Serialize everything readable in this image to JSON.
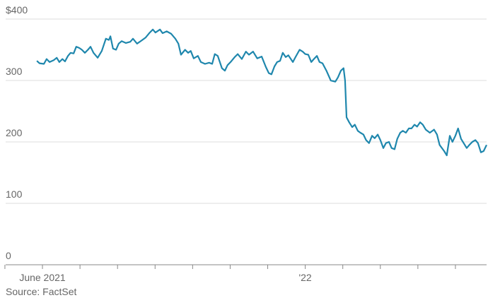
{
  "chart_data": {
    "type": "line",
    "source": "Source: FactSet",
    "x": [
      -0.15,
      -0.08,
      0.04,
      0.11,
      0.19,
      0.3,
      0.38,
      0.45,
      0.53,
      0.6,
      0.68,
      0.75,
      0.83,
      0.9,
      0.98,
      1.05,
      1.13,
      1.21,
      1.28,
      1.36,
      1.47,
      1.58,
      1.69,
      1.77,
      1.81,
      1.88,
      1.96,
      2.03,
      2.11,
      2.22,
      2.34,
      2.41,
      2.52,
      2.64,
      2.75,
      2.86,
      2.94,
      3.01,
      3.13,
      3.2,
      3.31,
      3.43,
      3.54,
      3.62,
      3.69,
      3.8,
      3.88,
      3.95,
      4.03,
      4.14,
      4.22,
      4.33,
      4.44,
      4.52,
      4.59,
      4.67,
      4.78,
      4.86,
      4.93,
      5.01,
      5.12,
      5.2,
      5.31,
      5.42,
      5.5,
      5.61,
      5.72,
      5.84,
      5.95,
      6.03,
      6.1,
      6.18,
      6.25,
      6.33,
      6.4,
      6.48,
      6.55,
      6.67,
      6.74,
      6.85,
      6.93,
      7.0,
      7.08,
      7.16,
      7.23,
      7.31,
      7.38,
      7.46,
      7.57,
      7.68,
      7.8,
      7.87,
      7.95,
      8.02,
      8.06,
      8.1,
      8.17,
      8.25,
      8.32,
      8.4,
      8.47,
      8.55,
      8.62,
      8.7,
      8.78,
      8.85,
      8.93,
      9.0,
      9.08,
      9.15,
      9.23,
      9.3,
      9.38,
      9.45,
      9.53,
      9.6,
      9.68,
      9.76,
      9.83,
      9.91,
      9.98,
      10.06,
      10.13,
      10.21,
      10.32,
      10.43,
      10.51,
      10.58,
      10.7,
      10.77,
      10.85,
      10.92,
      11.0,
      11.07,
      11.15,
      11.22,
      11.3,
      11.37,
      11.45,
      11.53,
      11.6,
      11.68,
      11.75,
      11.83
    ],
    "series": [
      {
        "color": "#1f87ad",
        "values": [
          332,
          328,
          327,
          335,
          330,
          333,
          337,
          330,
          335,
          331,
          340,
          345,
          344,
          355,
          353,
          350,
          345,
          350,
          355,
          345,
          337,
          348,
          368,
          366,
          372,
          352,
          350,
          360,
          364,
          361,
          363,
          368,
          360,
          365,
          370,
          378,
          383,
          378,
          383,
          377,
          380,
          376,
          368,
          360,
          342,
          350,
          345,
          348,
          336,
          340,
          330,
          327,
          329,
          327,
          343,
          340,
          320,
          316,
          325,
          330,
          338,
          343,
          335,
          347,
          342,
          347,
          336,
          339,
          322,
          312,
          310,
          323,
          330,
          332,
          345,
          338,
          341,
          330,
          338,
          350,
          347,
          343,
          342,
          330,
          335,
          340,
          330,
          328,
          315,
          300,
          298,
          305,
          316,
          320,
          300,
          240,
          232,
          224,
          228,
          218,
          215,
          212,
          203,
          198,
          210,
          206,
          212,
          203,
          190,
          198,
          200,
          190,
          188,
          205,
          215,
          218,
          215,
          222,
          222,
          228,
          225,
          232,
          228,
          220,
          215,
          220,
          212,
          195,
          185,
          178,
          210,
          200,
          210,
          222,
          205,
          198,
          190,
          195,
          200,
          203,
          198,
          183,
          185,
          195
        ]
      }
    ],
    "xlim": [
      -0.98,
      11.83
    ],
    "xticks": [
      {
        "value": 0,
        "label": "June 2021"
      },
      {
        "value": 7,
        "label": "'22"
      }
    ],
    "xminorticks": [
      -1,
      1,
      2,
      3,
      4,
      5,
      6,
      8,
      9,
      10,
      11
    ],
    "ylim": [
      0,
      400
    ],
    "yticks": [
      0,
      100,
      200,
      300,
      {
        "value": 400,
        "label": "$400"
      }
    ],
    "grid": true
  }
}
